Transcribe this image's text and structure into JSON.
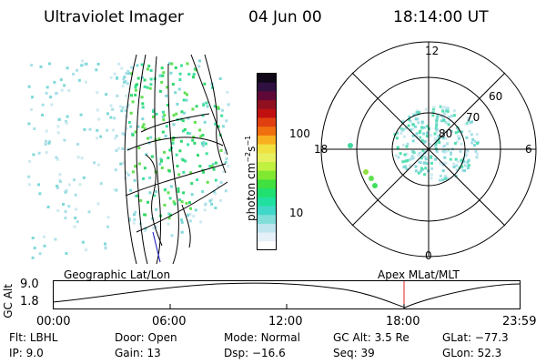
{
  "header": {
    "instrument": "Ultraviolet Imager",
    "date": "04 Jun 00",
    "time": "18:14:00 UT"
  },
  "colorbar": {
    "unit_label": "photon cm",
    "unit_sup1": "−2",
    "unit_mid": "s",
    "unit_sup2": "−1",
    "tick_100": "100",
    "tick_10": "10",
    "colors": [
      "#ffffff",
      "#e6f0f8",
      "#bfe6ee",
      "#80ddd8",
      "#40d8c8",
      "#20e0a0",
      "#20e070",
      "#40e040",
      "#80e830",
      "#c0f040",
      "#e8f060",
      "#f0e040",
      "#f8b020",
      "#f07010",
      "#e04010",
      "#c01010",
      "#901020",
      "#600838",
      "#301040",
      "#100818"
    ]
  },
  "polar_plot": {
    "label_12": "12",
    "label_0": "0",
    "label_6": "6",
    "label_18": "18",
    "label_60": "60",
    "label_70": "70",
    "label_80": "80"
  },
  "altitude_panel": {
    "left_title": "Geographic Lat/Lon",
    "right_title": "Apex MLat/MLT",
    "axis_label": "GC Alt",
    "y_max": "9.0",
    "y_min": "1.8",
    "x_ticks": [
      "00:00",
      "06:00",
      "12:00",
      "18:00",
      "23:59"
    ],
    "marker_color": "#e02020"
  },
  "info": {
    "filter_label": "Flt:",
    "filter_value": "LBHL",
    "door_label": "Door:",
    "door_value": "Open",
    "mode_label": "Mode:",
    "mode_value": "Normal",
    "gcalt_label": "GC Alt:",
    "gcalt_value": "3.5 Re",
    "glat_label": "GLat:",
    "glat_value": "−77.3",
    "ip_label": "IP:",
    "ip_value": "9.0",
    "gain_label": "Gain:",
    "gain_value": "13",
    "dsp_label": "Dsp:",
    "dsp_value": "−16.6",
    "seq_label": "Seq:",
    "seq_value": "39",
    "glon_label": "GLon:",
    "glon_value": "52.3"
  }
}
